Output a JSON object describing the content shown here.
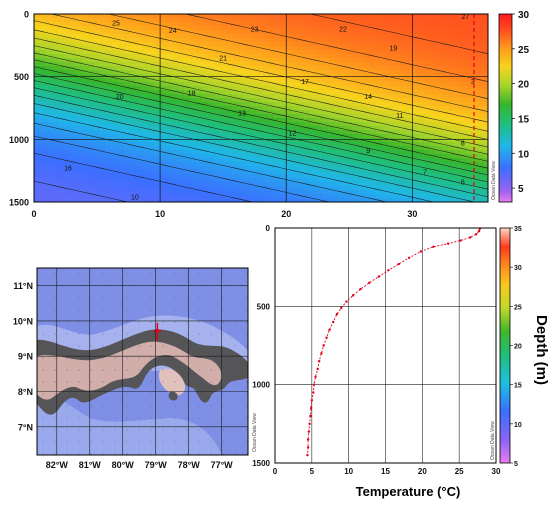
{
  "watermark": "Ocean Data View",
  "chart_data": [
    {
      "type": "heatmap",
      "title": "",
      "xlabel": "",
      "ylabel": "",
      "xlim": [
        0,
        36
      ],
      "ylim": [
        1500,
        0
      ],
      "x_ticks": [
        "0",
        "10",
        "20",
        "30"
      ],
      "y_ticks": [
        "0",
        "500",
        "1000",
        "1500"
      ],
      "colorbar": {
        "min": 3,
        "max": 30,
        "ticks": [
          "5",
          "10",
          "15",
          "20",
          "25",
          "30"
        ]
      },
      "contour_labels": [
        {
          "text": "25",
          "x": 6.5,
          "y": 70
        },
        {
          "text": "24",
          "x": 11,
          "y": 130
        },
        {
          "text": "23",
          "x": 17.5,
          "y": 120
        },
        {
          "text": "22",
          "x": 24.5,
          "y": 120
        },
        {
          "text": "21",
          "x": 15,
          "y": 350
        },
        {
          "text": "19",
          "x": 28.5,
          "y": 270
        },
        {
          "text": "20",
          "x": 6.8,
          "y": 660
        },
        {
          "text": "18",
          "x": 12.5,
          "y": 630
        },
        {
          "text": "17",
          "x": 21.5,
          "y": 540
        },
        {
          "text": "14",
          "x": 26.5,
          "y": 660
        },
        {
          "text": "13",
          "x": 16.5,
          "y": 790
        },
        {
          "text": "11",
          "x": 29,
          "y": 810
        },
        {
          "text": "12",
          "x": 20.5,
          "y": 950
        },
        {
          "text": "9",
          "x": 26.5,
          "y": 1090
        },
        {
          "text": "8",
          "x": 34,
          "y": 1030
        },
        {
          "text": "16",
          "x": 2.7,
          "y": 1230
        },
        {
          "text": "7",
          "x": 31,
          "y": 1260
        },
        {
          "text": "6",
          "x": 34,
          "y": 1340
        },
        {
          "text": "10",
          "x": 8,
          "y": 1460
        },
        {
          "text": "27",
          "x": 34.2,
          "y": 20
        },
        {
          "text": "3",
          "x": 34.8,
          "y": 540
        }
      ]
    },
    {
      "type": "map",
      "lat_ticks": [
        "11°N",
        "10°N",
        "9°N",
        "8°N",
        "7°N"
      ],
      "lon_ticks": [
        "82°W",
        "81°W",
        "80°W",
        "79°W",
        "78°W",
        "77°W"
      ],
      "lon_range": [
        -82.6,
        -76.2
      ],
      "lat_range": [
        6.2,
        11.5
      ],
      "station": {
        "lon": -78.95,
        "lat": 9.72
      }
    },
    {
      "type": "scatter",
      "xlabel": "Temperature (°C)",
      "ylabel": "Depth (m)",
      "xlim": [
        0,
        30
      ],
      "ylim": [
        1500,
        0
      ],
      "x_ticks": [
        "0",
        "5",
        "10",
        "15",
        "20",
        "25",
        "30"
      ],
      "y_ticks": [
        "0",
        "500",
        "1000",
        "1500"
      ],
      "colorbar": {
        "min": 5,
        "max": 35,
        "ticks": [
          "5",
          "10",
          "15",
          "20",
          "25",
          "30",
          "35"
        ]
      },
      "series": [
        {
          "x": [
            27.8,
            27.7,
            27.3,
            26.5,
            25.2,
            23.5,
            21.5,
            19.8,
            18.2,
            16.8,
            15.4,
            14.1,
            12.8,
            11.6,
            10.6,
            9.7,
            9.0,
            8.4,
            7.9,
            7.4,
            7.0,
            6.6,
            6.3,
            6.0,
            5.8,
            5.5,
            5.3,
            5.2,
            5.0,
            4.9,
            4.8,
            4.7,
            4.6,
            4.5,
            4.5,
            4.4
          ],
          "y": [
            5,
            20,
            40,
            60,
            80,
            100,
            120,
            150,
            190,
            230,
            270,
            310,
            350,
            390,
            430,
            470,
            510,
            550,
            600,
            650,
            700,
            750,
            800,
            850,
            900,
            950,
            1000,
            1050,
            1100,
            1150,
            1200,
            1250,
            1300,
            1350,
            1400,
            1450
          ]
        }
      ]
    }
  ]
}
